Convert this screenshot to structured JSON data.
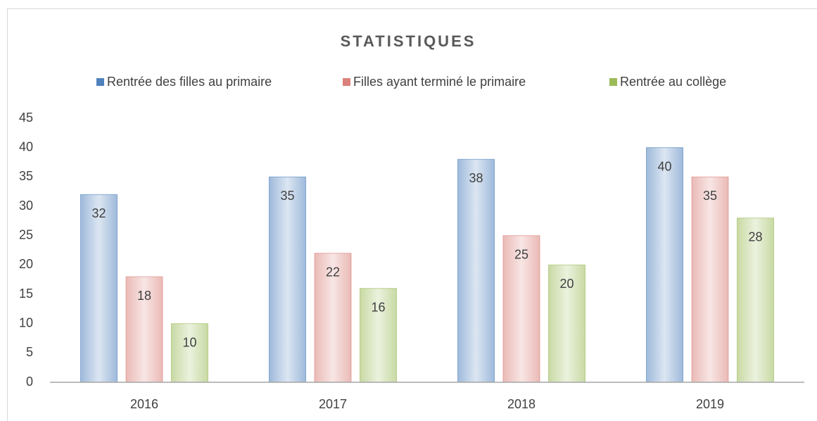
{
  "chart_data": {
    "type": "bar",
    "title": "STATISTIQUES",
    "categories": [
      "2016",
      "2017",
      "2018",
      "2019"
    ],
    "series": [
      {
        "name": "Rentrée des filles au primaire",
        "color": "#4f81bd",
        "values": [
          32,
          35,
          38,
          40
        ]
      },
      {
        "name": "Filles ayant terminé le primaire",
        "color": "#d9817a",
        "values": [
          18,
          22,
          25,
          35
        ]
      },
      {
        "name": "Rentrée au collège",
        "color": "#9bbb59",
        "values": [
          10,
          16,
          20,
          28
        ]
      }
    ],
    "ylim": [
      0,
      45
    ],
    "yticks": [
      0,
      5,
      10,
      15,
      20,
      25,
      30,
      35,
      40,
      45
    ],
    "grid": false,
    "legend": "top"
  }
}
